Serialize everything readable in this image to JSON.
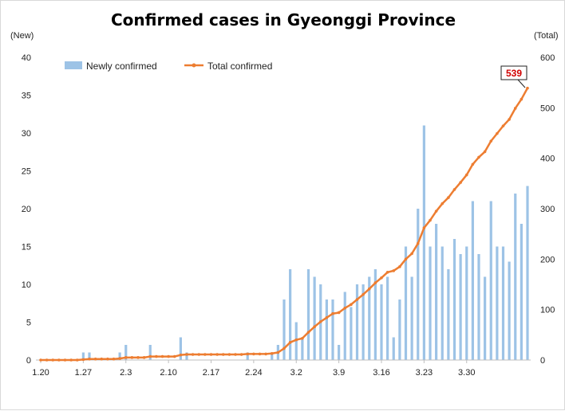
{
  "chart_data": {
    "type": "bar+line",
    "title": "Confirmed cases in Gyeonggi Province",
    "ylabel_left": "(New)",
    "ylabel_right": "(Total)",
    "ylim_left": [
      0,
      40
    ],
    "ylim_right": [
      0,
      600
    ],
    "yticks_left": [
      0,
      5,
      10,
      15,
      20,
      25,
      30,
      35,
      40
    ],
    "yticks_right": [
      0,
      100,
      200,
      300,
      400,
      500,
      600
    ],
    "xtick_labels": [
      "1.20",
      "1.27",
      "2.3",
      "2.10",
      "2.17",
      "2.24",
      "3.2",
      "3.9",
      "3.16",
      "3.23",
      "3.30"
    ],
    "legend": {
      "position": "top-left",
      "bar_label": "Newly confirmed",
      "line_label": "Total confirmed"
    },
    "colors": {
      "bar": "#9dc3e6",
      "line": "#ed7d31",
      "callout": "#d00000"
    },
    "callout_value": "539",
    "start_date": "1.20",
    "series": [
      {
        "name": "Newly confirmed",
        "kind": "bar",
        "values": [
          0,
          0,
          0,
          0,
          0,
          0,
          0,
          1,
          1,
          0,
          0,
          0,
          0,
          1,
          2,
          0,
          0,
          0,
          2,
          0,
          0,
          0,
          0,
          3,
          1,
          0,
          0,
          0,
          0,
          0,
          0,
          0,
          0,
          0,
          1,
          0,
          0,
          0,
          1,
          2,
          8,
          12,
          5,
          3,
          12,
          11,
          10,
          8,
          8,
          2,
          9,
          7,
          10,
          10,
          11,
          12,
          10,
          11,
          3,
          8,
          15,
          11,
          20,
          31,
          15,
          18,
          15,
          12,
          16,
          14,
          15,
          21,
          14,
          11,
          21,
          15,
          15,
          13,
          22,
          18,
          23
        ]
      },
      {
        "name": "Total confirmed",
        "kind": "line",
        "axis": "right",
        "values": [
          0,
          0,
          0,
          0,
          0,
          0,
          0,
          1,
          2,
          2,
          2,
          2,
          2,
          3,
          5,
          5,
          5,
          5,
          7,
          7,
          7,
          7,
          7,
          10,
          11,
          11,
          11,
          11,
          11,
          11,
          11,
          11,
          11,
          11,
          12,
          12,
          12,
          12,
          13,
          15,
          23,
          35,
          40,
          43,
          55,
          66,
          76,
          84,
          92,
          94,
          103,
          110,
          120,
          130,
          141,
          153,
          163,
          174,
          177,
          185,
          200,
          211,
          231,
          262,
          277,
          295,
          310,
          322,
          338,
          352,
          367,
          388,
          402,
          413,
          434,
          449,
          464,
          477,
          499,
          517,
          539
        ]
      }
    ]
  }
}
